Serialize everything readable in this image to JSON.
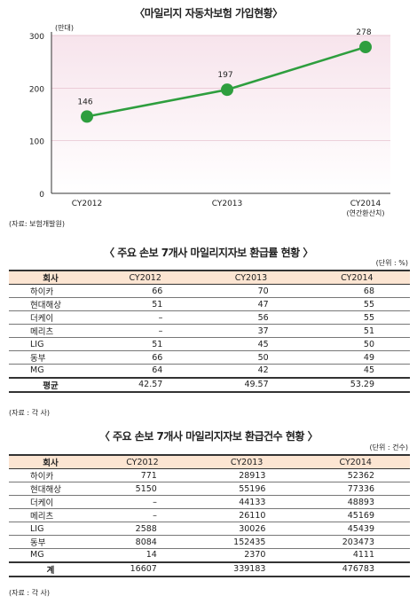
{
  "chart": {
    "title": "〈마일리지 자동차보험 가입현황〉",
    "unit": "(만대)",
    "source": "(자료: 보험개발원)",
    "chart_data": {
      "type": "line",
      "categories": [
        "CY2012",
        "CY2013",
        "CY2014"
      ],
      "category_sublabels": [
        "",
        "",
        "(연간환산치)"
      ],
      "values": [
        146,
        197,
        278
      ],
      "data_labels": [
        "146",
        "197",
        "278"
      ],
      "yticks": [
        "0",
        "100",
        "200",
        "300"
      ],
      "ylim": [
        0,
        300
      ],
      "line_color": "#2e9e3e",
      "plot_bg": "#f7e4ec"
    }
  },
  "table1": {
    "title": "〈 주요 손보 7개사 마일리지자보 환급률 현황 〉",
    "unit": "(단위 : %)",
    "source": "(자료 : 각 사)",
    "headers": [
      "회사",
      "CY2012",
      "CY2013",
      "CY2014"
    ],
    "rows": [
      [
        "하이카",
        "66",
        "70",
        "68"
      ],
      [
        "현대해상",
        "51",
        "47",
        "55"
      ],
      [
        "더케이",
        "–",
        "56",
        "55"
      ],
      [
        "메리츠",
        "–",
        "37",
        "51"
      ],
      [
        "LIG",
        "51",
        "45",
        "50"
      ],
      [
        "동부",
        "66",
        "50",
        "49"
      ],
      [
        "MG",
        "64",
        "42",
        "45"
      ]
    ],
    "total": [
      "평균",
      "42.57",
      "49.57",
      "53.29"
    ]
  },
  "table2": {
    "title": "〈 주요 손보 7개사 마일리지자보 환급건수 현황 〉",
    "unit": "(단위 : 건수)",
    "source": "(자료 : 각 사)",
    "headers": [
      "회사",
      "CY2012",
      "CY2013",
      "CY2014"
    ],
    "rows": [
      [
        "하이카",
        "771",
        "28913",
        "52362"
      ],
      [
        "현대해상",
        "5150",
        "55196",
        "77336"
      ],
      [
        "더케이",
        "–",
        "44133",
        "48893"
      ],
      [
        "메리츠",
        "–",
        "26110",
        "45169"
      ],
      [
        "LIG",
        "2588",
        "30026",
        "45439"
      ],
      [
        "동부",
        "8084",
        "152435",
        "203473"
      ],
      [
        "MG",
        "14",
        "2370",
        "4111"
      ]
    ],
    "total": [
      "계",
      "16607",
      "339183",
      "476783"
    ]
  }
}
